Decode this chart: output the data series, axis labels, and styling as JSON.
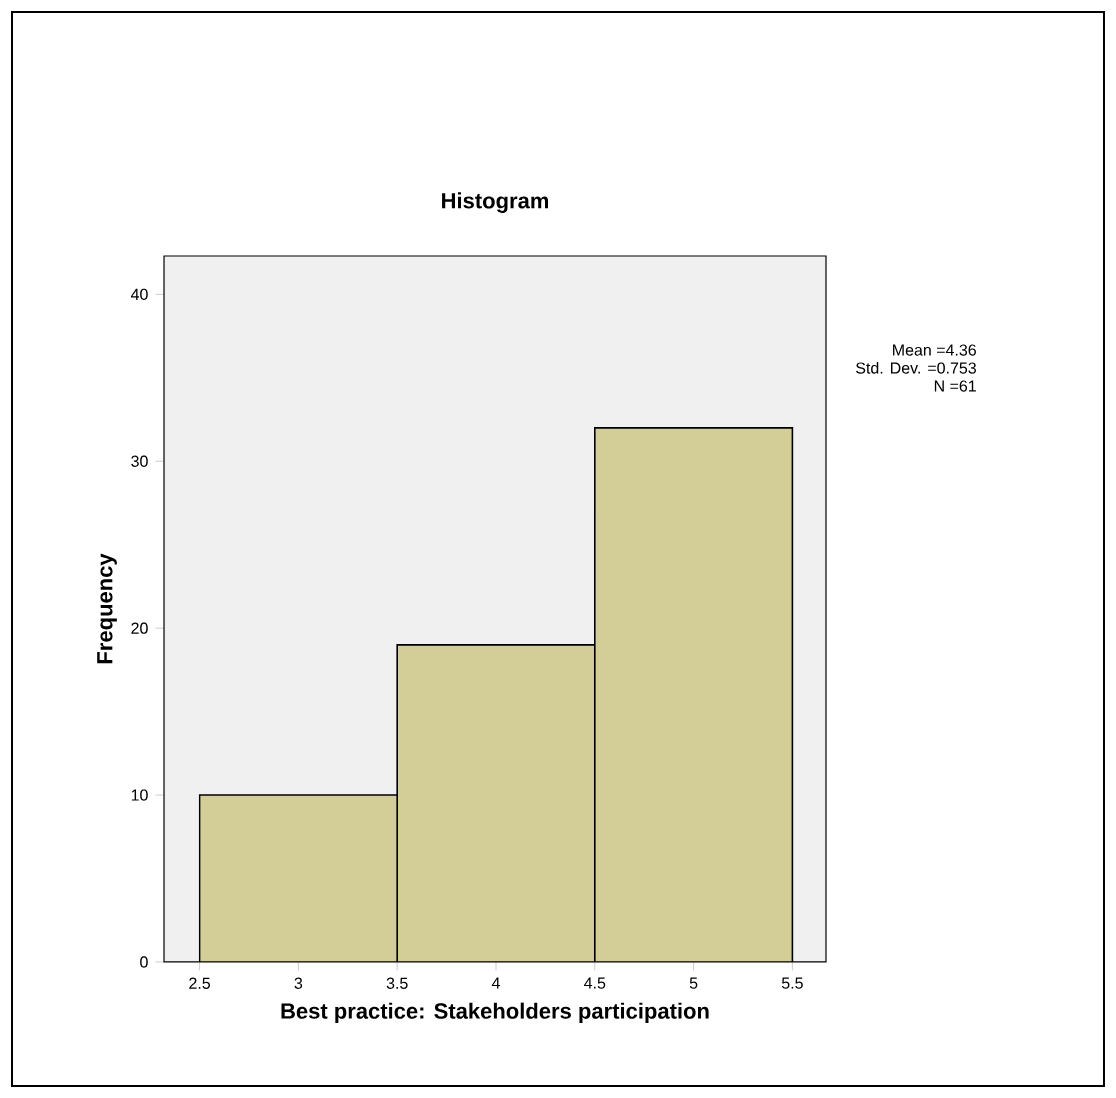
{
  "chart_data": {
    "type": "histogram",
    "title": "Histogram",
    "xlabel": "Best practice: Stakeholders participation",
    "ylabel": "Frequency",
    "bins": [
      2.5,
      3.5,
      4.5,
      5.5
    ],
    "values": [
      10,
      19,
      32
    ],
    "color": "#d3ce97",
    "xlim": [
      2.32,
      5.67
    ],
    "ylim": [
      0,
      42.3
    ],
    "xticks": [
      2.5,
      3,
      3.5,
      4,
      4.5,
      5,
      5.5
    ],
    "yticks": [
      0,
      10,
      20,
      30,
      40
    ],
    "annotations": [
      "Mean =4.36",
      "Std. Dev. =0.753",
      "N =61"
    ],
    "grid": false
  }
}
